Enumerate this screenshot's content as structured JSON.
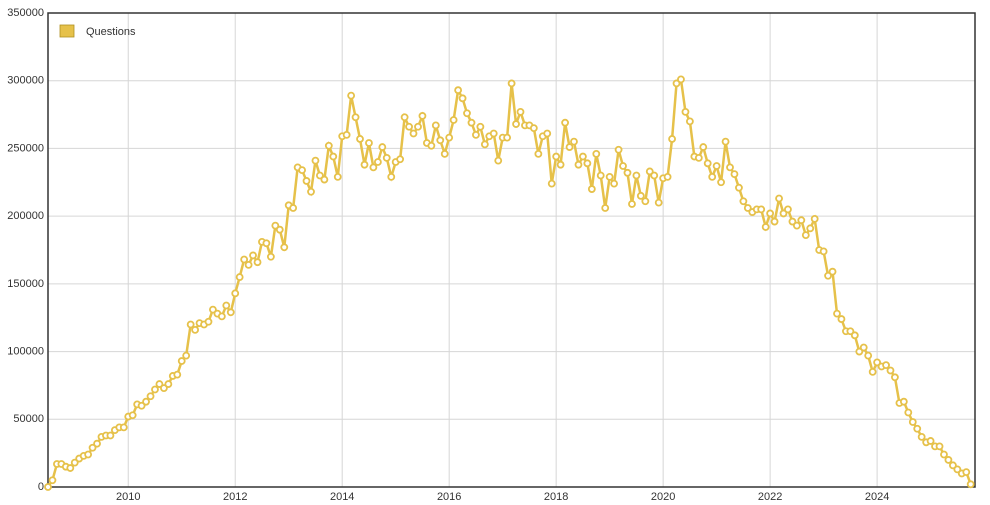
{
  "chart_data": {
    "type": "line",
    "legend": "top-left",
    "grid": true,
    "x": [
      2008.5,
      2008.583,
      2008.667,
      2008.75,
      2008.833,
      2008.917,
      2009,
      2009.083,
      2009.167,
      2009.25,
      2009.333,
      2009.417,
      2009.5,
      2009.583,
      2009.667,
      2009.75,
      2009.833,
      2009.917,
      2010,
      2010.083,
      2010.167,
      2010.25,
      2010.333,
      2010.417,
      2010.5,
      2010.583,
      2010.667,
      2010.75,
      2010.833,
      2010.917,
      2011,
      2011.083,
      2011.167,
      2011.25,
      2011.333,
      2011.417,
      2011.5,
      2011.583,
      2011.667,
      2011.75,
      2011.833,
      2011.917,
      2012,
      2012.083,
      2012.167,
      2012.25,
      2012.333,
      2012.417,
      2012.5,
      2012.583,
      2012.667,
      2012.75,
      2012.833,
      2012.917,
      2013,
      2013.083,
      2013.167,
      2013.25,
      2013.333,
      2013.417,
      2013.5,
      2013.583,
      2013.667,
      2013.75,
      2013.833,
      2013.917,
      2014,
      2014.083,
      2014.167,
      2014.25,
      2014.333,
      2014.417,
      2014.5,
      2014.583,
      2014.667,
      2014.75,
      2014.833,
      2014.917,
      2015,
      2015.083,
      2015.167,
      2015.25,
      2015.333,
      2015.417,
      2015.5,
      2015.583,
      2015.667,
      2015.75,
      2015.833,
      2015.917,
      2016,
      2016.083,
      2016.167,
      2016.25,
      2016.333,
      2016.417,
      2016.5,
      2016.583,
      2016.667,
      2016.75,
      2016.833,
      2016.917,
      2017,
      2017.083,
      2017.167,
      2017.25,
      2017.333,
      2017.417,
      2017.5,
      2017.583,
      2017.667,
      2017.75,
      2017.833,
      2017.917,
      2018,
      2018.083,
      2018.167,
      2018.25,
      2018.333,
      2018.417,
      2018.5,
      2018.583,
      2018.667,
      2018.75,
      2018.833,
      2018.917,
      2019,
      2019.083,
      2019.167,
      2019.25,
      2019.333,
      2019.417,
      2019.5,
      2019.583,
      2019.667,
      2019.75,
      2019.833,
      2019.917,
      2020,
      2020.083,
      2020.167,
      2020.25,
      2020.333,
      2020.417,
      2020.5,
      2020.583,
      2020.667,
      2020.75,
      2020.833,
      2020.917,
      2021,
      2021.083,
      2021.167,
      2021.25,
      2021.333,
      2021.417,
      2021.5,
      2021.583,
      2021.667,
      2021.75,
      2021.833,
      2021.917,
      2022,
      2022.083,
      2022.167,
      2022.25,
      2022.333,
      2022.417,
      2022.5,
      2022.583,
      2022.667,
      2022.75,
      2022.833,
      2022.917,
      2023,
      2023.083,
      2023.167,
      2023.25,
      2023.333,
      2023.417,
      2023.5,
      2023.583,
      2023.667,
      2023.75,
      2023.833,
      2023.917,
      2024,
      2024.083,
      2024.167,
      2024.25,
      2024.333,
      2024.417,
      2024.5,
      2024.583,
      2024.667,
      2024.75,
      2024.833,
      2024.917,
      2025,
      2025.083,
      2025.167,
      2025.25,
      2025.333,
      2025.417,
      2025.5,
      2025.583,
      2025.667,
      2025.75
    ],
    "series": [
      {
        "name": "Questions",
        "color": "#e6c14a",
        "values": [
          0,
          5000,
          17000,
          17000,
          15000,
          14000,
          18000,
          21000,
          23000,
          24000,
          29000,
          32000,
          37000,
          38000,
          38000,
          42000,
          44000,
          44000,
          52000,
          53000,
          61000,
          60000,
          63000,
          67000,
          72000,
          76000,
          73000,
          76000,
          82000,
          83000,
          93000,
          97000,
          120000,
          116000,
          121000,
          120000,
          122000,
          131000,
          128000,
          126000,
          134000,
          129000,
          143000,
          155000,
          168000,
          164000,
          171000,
          166000,
          181000,
          180000,
          170000,
          193000,
          190000,
          177000,
          208000,
          206000,
          236000,
          234000,
          226000,
          218000,
          241000,
          230000,
          227000,
          252000,
          244000,
          229000,
          259000,
          260000,
          289000,
          273000,
          257000,
          238000,
          254000,
          236000,
          240000,
          251000,
          243000,
          229000,
          240000,
          242000,
          273000,
          266000,
          261000,
          266000,
          274000,
          254000,
          252000,
          267000,
          256000,
          246000,
          258000,
          271000,
          293000,
          287000,
          276000,
          269000,
          260000,
          266000,
          253000,
          259000,
          261000,
          241000,
          258000,
          258000,
          298000,
          268000,
          277000,
          267000,
          267000,
          265000,
          246000,
          259000,
          261000,
          224000,
          244000,
          238000,
          269000,
          251000,
          255000,
          238000,
          244000,
          239000,
          220000,
          246000,
          230000,
          206000,
          229000,
          224000,
          249000,
          237000,
          232000,
          209000,
          230000,
          215000,
          211000,
          233000,
          230000,
          210000,
          228000,
          229000,
          257000,
          298000,
          301000,
          277000,
          270000,
          244000,
          243000,
          251000,
          239000,
          229000,
          237000,
          225000,
          255000,
          236000,
          231000,
          221000,
          211000,
          206000,
          203000,
          205000,
          205000,
          192000,
          202000,
          196000,
          213000,
          202000,
          205000,
          196000,
          193000,
          197000,
          186000,
          191000,
          198000,
          175000,
          174000,
          156000,
          159000,
          128000,
          124000,
          115000,
          115000,
          112000,
          100000,
          103000,
          97000,
          85000,
          92000,
          89000,
          90000,
          86000,
          81000,
          62000,
          63000,
          55000,
          48000,
          43000,
          37000,
          33000,
          34000,
          30000,
          30000,
          24000,
          20000,
          16000,
          13000,
          10000,
          11000,
          2000
        ]
      }
    ],
    "xlim": [
      2008.5,
      2025.83
    ],
    "xticks": [
      2010,
      2012,
      2014,
      2016,
      2018,
      2020,
      2022,
      2024
    ],
    "ylim": [
      0,
      350000
    ],
    "yticks": [
      0,
      50000,
      100000,
      150000,
      200000,
      250000,
      300000,
      350000
    ]
  }
}
